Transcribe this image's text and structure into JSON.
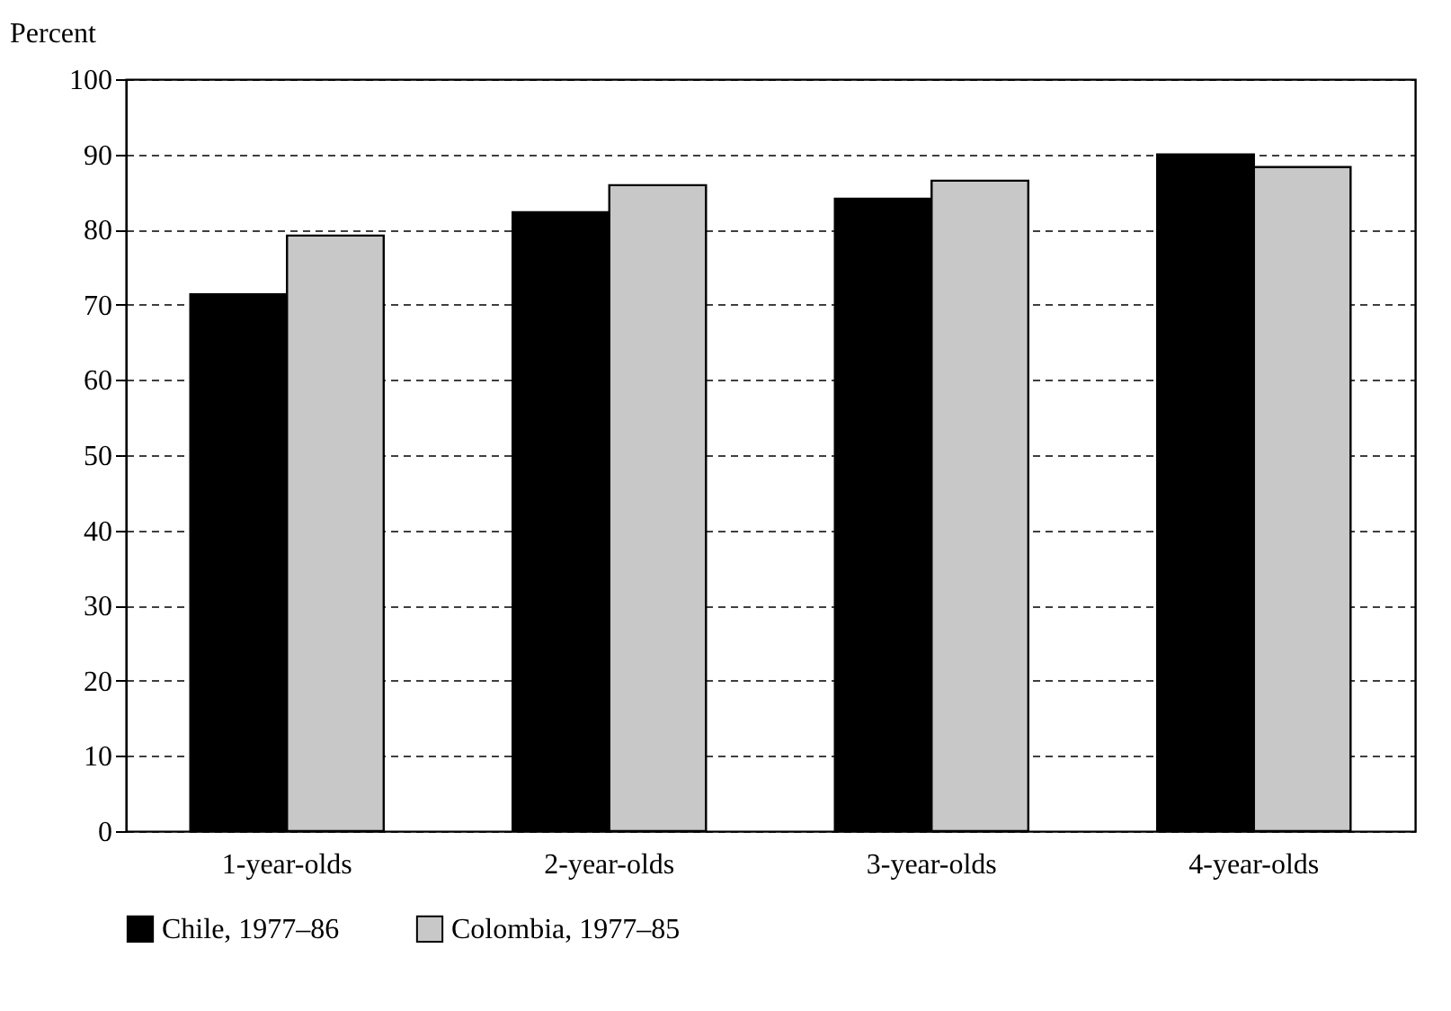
{
  "chart_data": {
    "type": "bar",
    "ylabel": "Percent",
    "categories": [
      "1-year-olds",
      "2-year-olds",
      "3-year-olds",
      "4-year-olds"
    ],
    "series": [
      {
        "name": "Chile, 1977–86",
        "color": "#000000",
        "values": [
          71.4,
          82.3,
          84.1,
          90
        ]
      },
      {
        "name": "Colombia, 1977–85",
        "color": "#c8c8c8",
        "values": [
          79.2,
          85.9,
          86.5,
          88.3
        ]
      }
    ],
    "ylim": [
      0,
      100
    ],
    "yticks": [
      0,
      10,
      20,
      30,
      40,
      50,
      60,
      70,
      80,
      90,
      100
    ],
    "grid": "y",
    "legend": "bottom"
  }
}
